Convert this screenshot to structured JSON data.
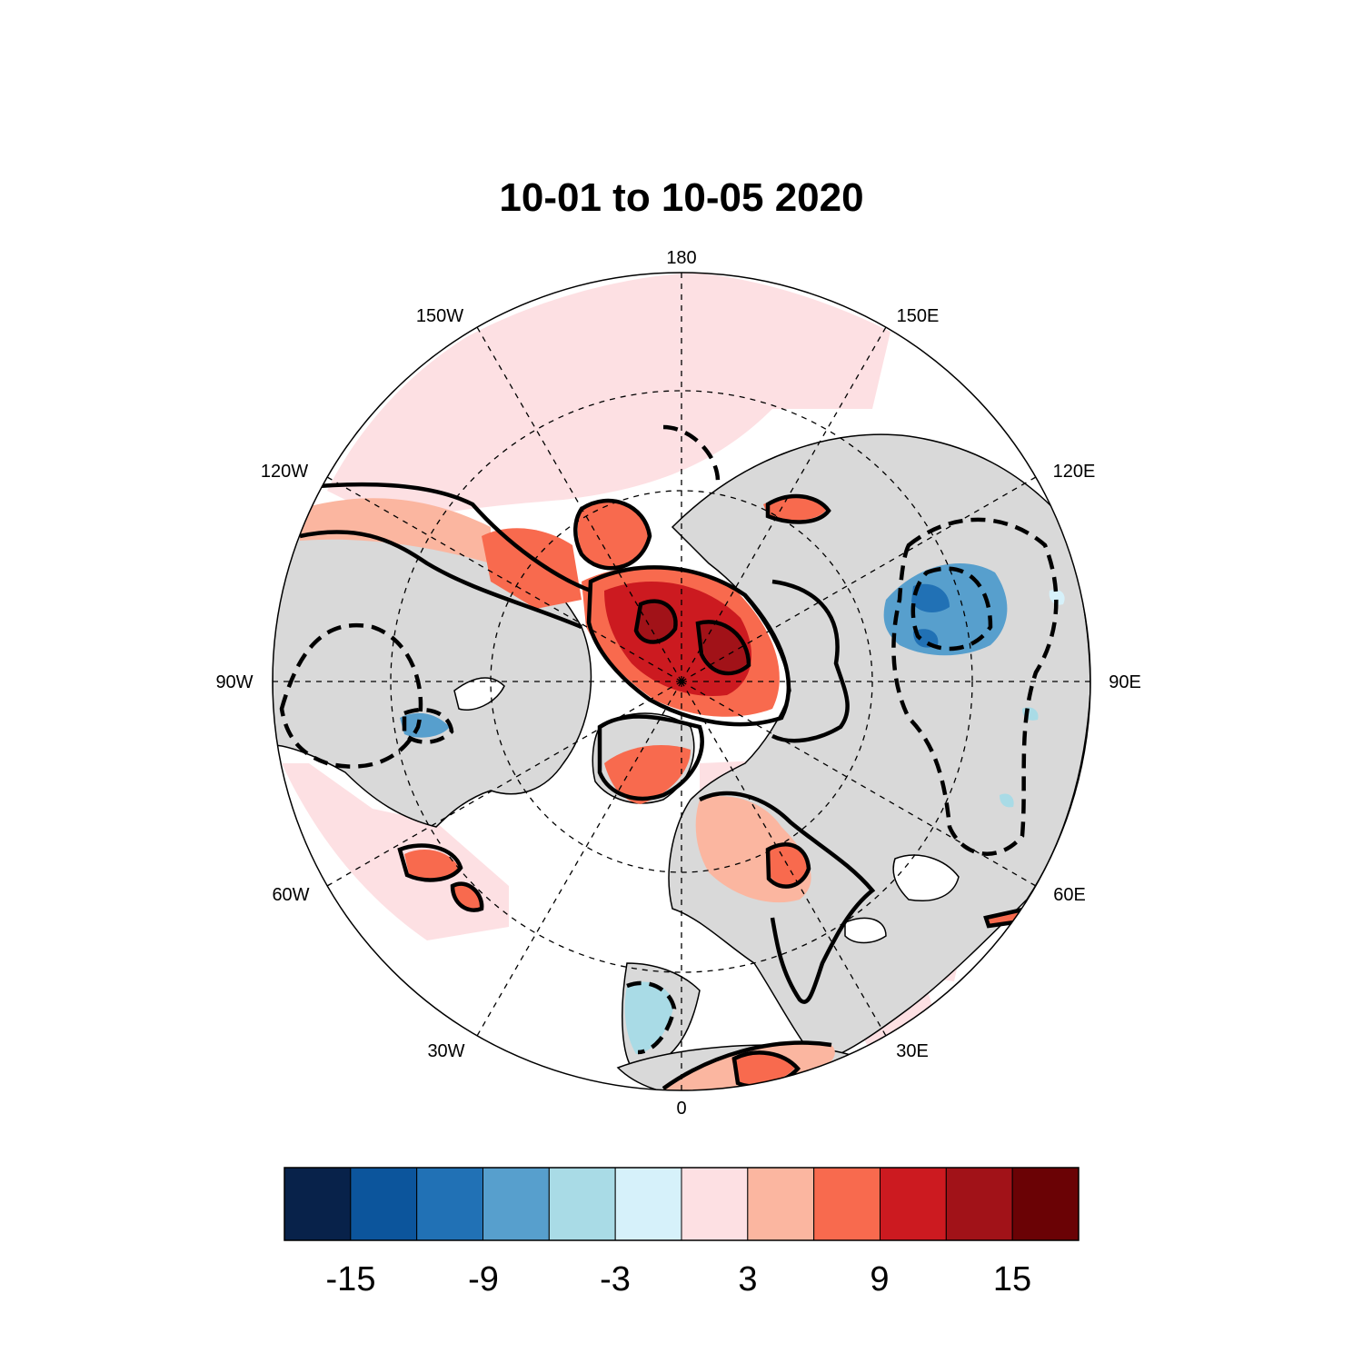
{
  "title": "10-01 to 10-05 2020",
  "map": {
    "projection": "north-polar-stereographic",
    "land_color": "#d9d9d9",
    "ocean_color": "#ffffff",
    "contour_color": "#000000",
    "longitude_labels": [
      "180",
      "150E",
      "120E",
      "90E",
      "60E",
      "30E",
      "0",
      "30W",
      "60W",
      "90W",
      "120W",
      "150W"
    ]
  },
  "colorbar": {
    "colors": [
      "#08224a",
      "#0c559c",
      "#2171b5",
      "#579fcd",
      "#a9dbe6",
      "#d6f1fa",
      "#fde0e3",
      "#fbb6a0",
      "#f86a4e",
      "#cc1a20",
      "#a11218",
      "#6a0205"
    ],
    "tick_labels": [
      "-15",
      "-9",
      "-3",
      "3",
      "9",
      "15"
    ]
  }
}
